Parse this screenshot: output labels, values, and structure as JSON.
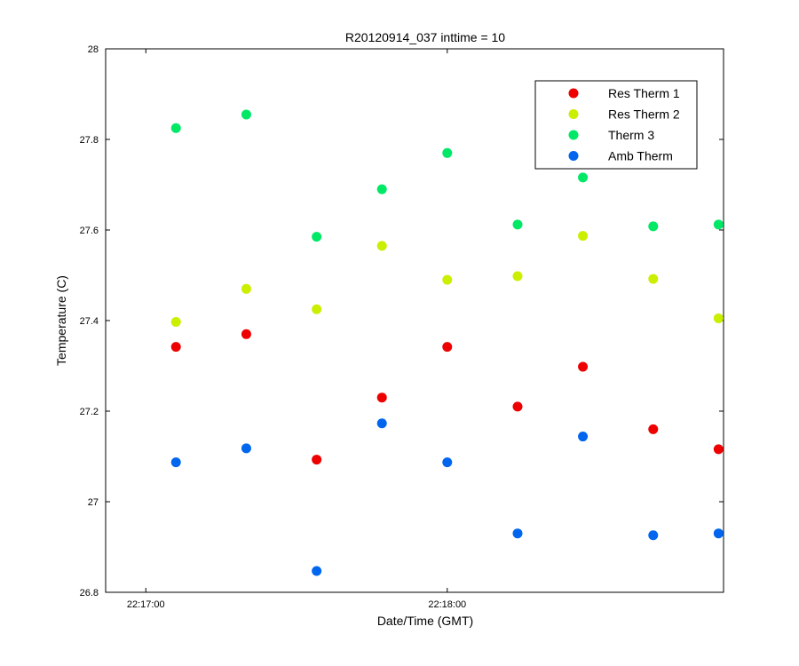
{
  "chart_data": {
    "type": "scatter",
    "title": "R20120914_037 inttime = 10",
    "xlabel": "Date/Time (GMT)",
    "ylabel": "Temperature (C)",
    "xlim": [
      "22:16:52",
      "22:18:55"
    ],
    "ylim": [
      26.8,
      28
    ],
    "xticks": [
      "22:17:00",
      "22:18:00"
    ],
    "yticks": [
      "26.8",
      "27",
      "27.2",
      "27.4",
      "27.6",
      "27.8",
      "28"
    ],
    "legend_position": "top-right",
    "grid": false,
    "x": [
      "22:17:06",
      "22:17:20",
      "22:17:34",
      "22:17:47",
      "22:18:00",
      "22:18:14",
      "22:18:27",
      "22:18:41",
      "22:18:54"
    ],
    "series": [
      {
        "name": "Res Therm 1",
        "color": "#ee0000",
        "values": [
          27.342,
          27.37,
          27.093,
          27.23,
          27.342,
          27.21,
          27.298,
          27.16,
          27.116
        ]
      },
      {
        "name": "Res Therm 2",
        "color": "#ccee00",
        "values": [
          27.397,
          27.47,
          27.425,
          27.565,
          27.49,
          27.498,
          27.587,
          27.492,
          27.405
        ]
      },
      {
        "name": "Therm 3",
        "color": "#00e866",
        "values": [
          27.825,
          27.855,
          27.585,
          27.69,
          27.77,
          27.612,
          27.716,
          27.608,
          27.612
        ]
      },
      {
        "name": "Amb Therm",
        "color": "#0066ee",
        "values": [
          27.087,
          27.118,
          26.847,
          27.173,
          27.087,
          26.93,
          27.144,
          26.926,
          26.93
        ]
      }
    ]
  }
}
